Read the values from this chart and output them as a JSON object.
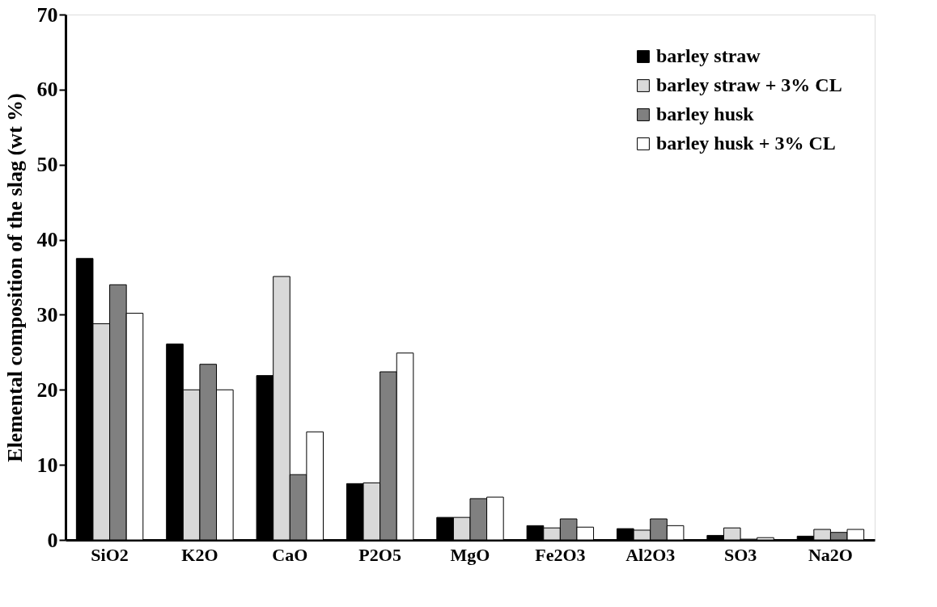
{
  "chart_data": {
    "type": "bar",
    "ylabel": "Elemental composition of the slag (wt %)",
    "categories": [
      "SiO2",
      "K2O",
      "CaO",
      "P2O5",
      "MgO",
      "Fe2O3",
      "Al2O3",
      "SO3",
      "Na2O"
    ],
    "series": [
      {
        "name": "barley straw",
        "color": "#000000",
        "values": [
          37.5,
          26.1,
          21.9,
          7.5,
          3.0,
          1.9,
          1.5,
          0.6,
          0.5
        ]
      },
      {
        "name": "barley straw + 3% CL",
        "color": "#d9d9d9",
        "values": [
          28.8,
          20.0,
          35.1,
          7.6,
          3.0,
          1.6,
          1.3,
          1.6,
          1.4
        ]
      },
      {
        "name": "barley husk",
        "color": "#808080",
        "values": [
          34.0,
          23.4,
          8.7,
          22.4,
          5.5,
          2.8,
          2.8,
          0.1,
          1.0
        ]
      },
      {
        "name": "barley husk + 3% CL",
        "color": "#ffffff",
        "values": [
          30.2,
          20.0,
          14.4,
          24.9,
          5.7,
          1.7,
          1.9,
          0.3,
          1.4
        ]
      }
    ],
    "ylim": [
      0,
      70
    ],
    "yticks": [
      0,
      10,
      20,
      30,
      40,
      50,
      60,
      70
    ],
    "grid": false,
    "legend": "top right"
  }
}
